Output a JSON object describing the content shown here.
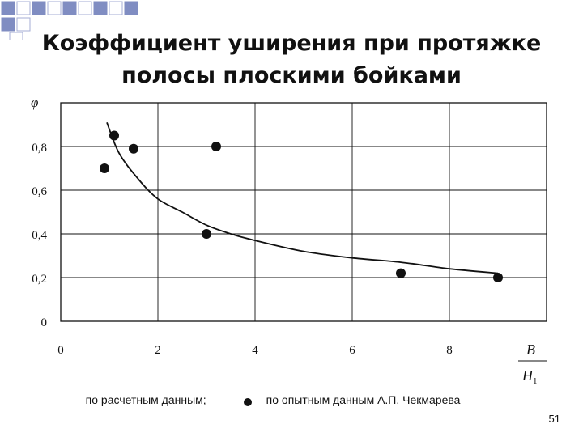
{
  "title_line1": "Коэффициент уширения при протяжке",
  "title_line2": "полосы плоскими бойками",
  "colors": {
    "accent": "#6b7ab8",
    "ink": "#111111"
  },
  "chart_data": {
    "type": "scatter",
    "ylabel": "φ",
    "xlabel_numerator": "B",
    "xlabel_denominator": "H",
    "xlabel_denominator_sub": "1",
    "xlim": [
      0,
      10
    ],
    "ylim": [
      0,
      1.0
    ],
    "x_ticks": [
      "0",
      "2",
      "4",
      "6",
      "8"
    ],
    "y_ticks": [
      "0",
      "0,2",
      "0,4",
      "0,6",
      "0,8"
    ],
    "x_tick_values": [
      0,
      2,
      4,
      6,
      8
    ],
    "y_tick_values": [
      0,
      0.2,
      0.4,
      0.6,
      0.8
    ],
    "grid": true,
    "series": [
      {
        "kind": "line",
        "x": [
          0.95,
          1.2,
          1.6,
          2.0,
          2.5,
          3.0,
          3.5,
          4.0,
          5.0,
          6.0,
          7.0,
          8.0,
          9.0
        ],
        "y": [
          0.91,
          0.77,
          0.65,
          0.56,
          0.5,
          0.44,
          0.4,
          0.37,
          0.32,
          0.29,
          0.27,
          0.24,
          0.22
        ]
      },
      {
        "kind": "points",
        "x": [
          0.9,
          1.1,
          1.5,
          3.0,
          3.2,
          7.0,
          9.0
        ],
        "y": [
          0.7,
          0.85,
          0.79,
          0.4,
          0.8,
          0.22,
          0.2
        ]
      }
    ]
  },
  "legend": {
    "line_text": "– по расчетным данным;",
    "dot_text": "– по опытным данным А.П. Чекмарева"
  },
  "page_number": "51"
}
